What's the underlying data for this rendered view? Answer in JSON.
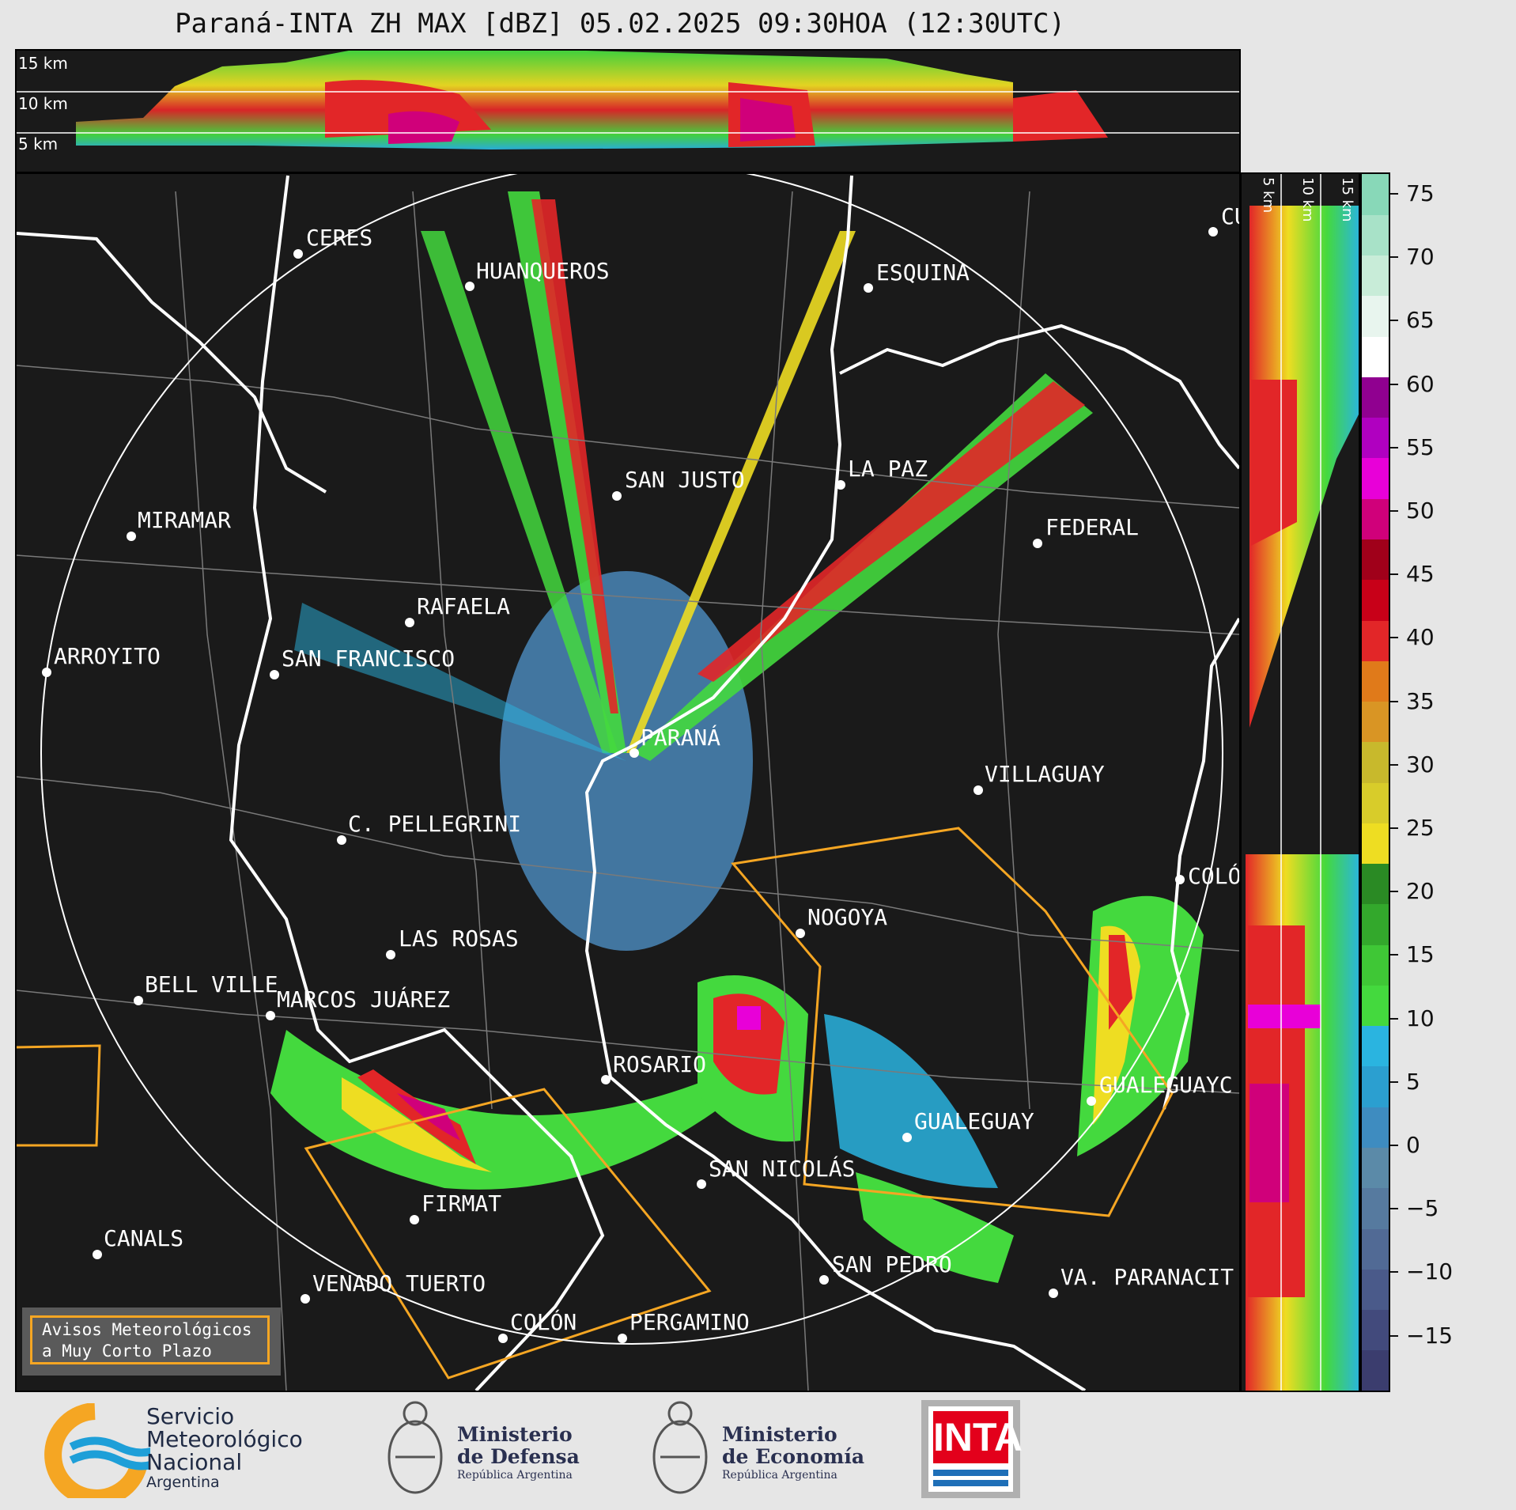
{
  "title": "Paraná-INTA ZH MAX [dBZ] 05.02.2025 09:30HOA (12:30UTC)",
  "height_labels": {
    "h15": "15 km",
    "h10": "10 km",
    "h5": "5 km"
  },
  "cities": [
    {
      "name": "CERES"
    },
    {
      "name": "HUANQUEROS"
    },
    {
      "name": "ESQUINA"
    },
    {
      "name": "CU"
    },
    {
      "name": "SAN JUSTO"
    },
    {
      "name": "LA PAZ"
    },
    {
      "name": "MIRAMAR"
    },
    {
      "name": "FEDERAL"
    },
    {
      "name": "RAFAELA"
    },
    {
      "name": "ARROYITO"
    },
    {
      "name": "SAN FRANCISCO"
    },
    {
      "name": "PARANÁ"
    },
    {
      "name": "VILLAGUAY"
    },
    {
      "name": "C. PELLEGRINI"
    },
    {
      "name": "COLÓ"
    },
    {
      "name": "NOGOYA"
    },
    {
      "name": "LAS ROSAS"
    },
    {
      "name": "BELL VILLE"
    },
    {
      "name": "MARCOS JUÁREZ"
    },
    {
      "name": "ROSARIO"
    },
    {
      "name": "GUALEGUAYC"
    },
    {
      "name": "GUALEGUAY"
    },
    {
      "name": "SAN NICOLÁS"
    },
    {
      "name": "FIRMAT"
    },
    {
      "name": "CANALS"
    },
    {
      "name": "SAN PEDRO"
    },
    {
      "name": "VENADO TUERTO"
    },
    {
      "name": "VA. PARANACIT"
    },
    {
      "name": "COLÓN"
    },
    {
      "name": "PERGAMINO"
    }
  ],
  "avisos": {
    "line1": "Avisos Meteorológicos",
    "line2": "a Muy Corto Plazo"
  },
  "colorbar": {
    "unit": "dBZ",
    "ticks": [
      "75",
      "70",
      "65",
      "60",
      "55",
      "50",
      "45",
      "40",
      "35",
      "30",
      "25",
      "20",
      "15",
      "10",
      "5",
      "0",
      "−5",
      "−10",
      "−15"
    ],
    "colors": [
      "#3b3d6e",
      "#424a7c",
      "#4a5a8a",
      "#516a95",
      "#567a9f",
      "#5b8aa8",
      "#3e8cc0",
      "#2b9fd0",
      "#2ab4e0",
      "#44d93e",
      "#3fc736",
      "#33a82c",
      "#2a8a24",
      "#eedd22",
      "#d8cc2a",
      "#c8b92c",
      "#d99524",
      "#e07a1a",
      "#e22628",
      "#c80018",
      "#a0001a",
      "#d0007a",
      "#e800d8",
      "#b000c0",
      "#900090",
      "#ffffff",
      "#e8f5ee",
      "#c8ecd8",
      "#a8e2c8",
      "#88d8b8"
    ]
  },
  "logos": {
    "smn": {
      "line1": "Servicio",
      "line2": "Meteorológico",
      "line3": "Nacional",
      "line4": "Argentina"
    },
    "defensa": {
      "line1": "Ministerio",
      "line2": "de Defensa",
      "line3": "República Argentina"
    },
    "economia": {
      "line1": "Ministerio",
      "line2": "de Economía",
      "line3": "República Argentina"
    },
    "inta": {
      "text": "INTA"
    }
  }
}
